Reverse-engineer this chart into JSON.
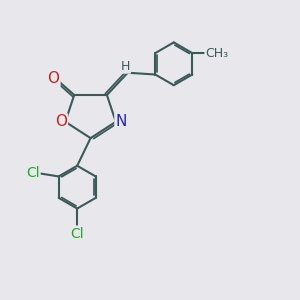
{
  "bg_color": "#e8e8ec",
  "bond_color": "#3a5a5a",
  "bond_width": 1.5,
  "atom_colors": {
    "O": "#cc2222",
    "N": "#2222cc",
    "Cl": "#22aa22",
    "C": "#3a5a5a",
    "H": "#3a5a5a"
  },
  "font_size": 10
}
